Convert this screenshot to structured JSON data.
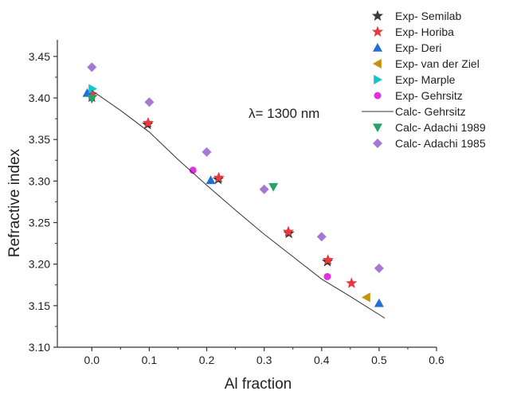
{
  "chart_data": {
    "type": "scatter",
    "title": "",
    "annotation": "λ= 1300 nm",
    "xlabel": "Al fraction",
    "ylabel": "Refractive index",
    "xlim": [
      -0.06,
      0.6
    ],
    "ylim": [
      3.1,
      3.47
    ],
    "xticks": [
      0.0,
      0.1,
      0.2,
      0.3,
      0.4,
      0.5,
      0.6
    ],
    "xtick_labels": [
      "0.0",
      "0.1",
      "0.2",
      "0.3",
      "0.4",
      "0.5",
      "0.6"
    ],
    "yticks": [
      3.1,
      3.15,
      3.2,
      3.25,
      3.3,
      3.35,
      3.4,
      3.45
    ],
    "ytick_labels": [
      "3.10",
      "3.15",
      "3.20",
      "3.25",
      "3.30",
      "3.35",
      "3.40",
      "3.45"
    ],
    "grid": false,
    "legend_position": "top-right",
    "series": [
      {
        "name": "Exp- Semilab",
        "marker": "star",
        "color": "#3a3a3a",
        "x": [
          0.0,
          0.097,
          0.22,
          0.343,
          0.41
        ],
        "y": [
          3.401,
          3.368,
          3.302,
          3.237,
          3.203
        ]
      },
      {
        "name": "Exp- Horiba",
        "marker": "star",
        "color": "#e8383d",
        "x": [
          0.0,
          0.098,
          0.221,
          0.342,
          0.411,
          0.452
        ],
        "y": [
          3.404,
          3.37,
          3.304,
          3.239,
          3.205,
          3.177
        ]
      },
      {
        "name": "Exp- Deri",
        "marker": "triangle-up",
        "color": "#1f6fd6",
        "x": [
          -0.008,
          0.207,
          0.5
        ],
        "y": [
          3.406,
          3.301,
          3.153
        ]
      },
      {
        "name": "Exp- van der Ziel",
        "marker": "triangle-left",
        "color": "#c8930c",
        "x": [
          0.478
        ],
        "y": [
          3.16
        ]
      },
      {
        "name": "Exp- Marple",
        "marker": "triangle-right",
        "color": "#17c3cf",
        "x": [
          0.001
        ],
        "y": [
          3.411
        ]
      },
      {
        "name": "Exp- Gehrsitz",
        "marker": "circle",
        "color": "#e030e0",
        "x": [
          0.176,
          0.41
        ],
        "y": [
          3.313,
          3.185
        ]
      },
      {
        "name": "Calc- Gehrsitz",
        "marker": "line",
        "color": "#333333",
        "x": [
          0.0,
          0.05,
          0.1,
          0.15,
          0.2,
          0.25,
          0.3,
          0.35,
          0.4,
          0.45,
          0.51
        ],
        "y": [
          3.409,
          3.385,
          3.359,
          3.326,
          3.295,
          3.265,
          3.236,
          3.209,
          3.182,
          3.161,
          3.135
        ]
      },
      {
        "name": "Calc- Adachi 1989",
        "marker": "triangle-down",
        "color": "#26a36b",
        "x": [
          0.0,
          0.316
        ],
        "y": [
          3.399,
          3.293
        ]
      },
      {
        "name": "Calc- Adachi 1985",
        "marker": "diamond",
        "color": "#a678d6",
        "x": [
          0.0,
          0.1,
          0.2,
          0.3,
          0.4,
          0.5
        ],
        "y": [
          3.437,
          3.395,
          3.335,
          3.29,
          3.233,
          3.195
        ]
      }
    ]
  }
}
